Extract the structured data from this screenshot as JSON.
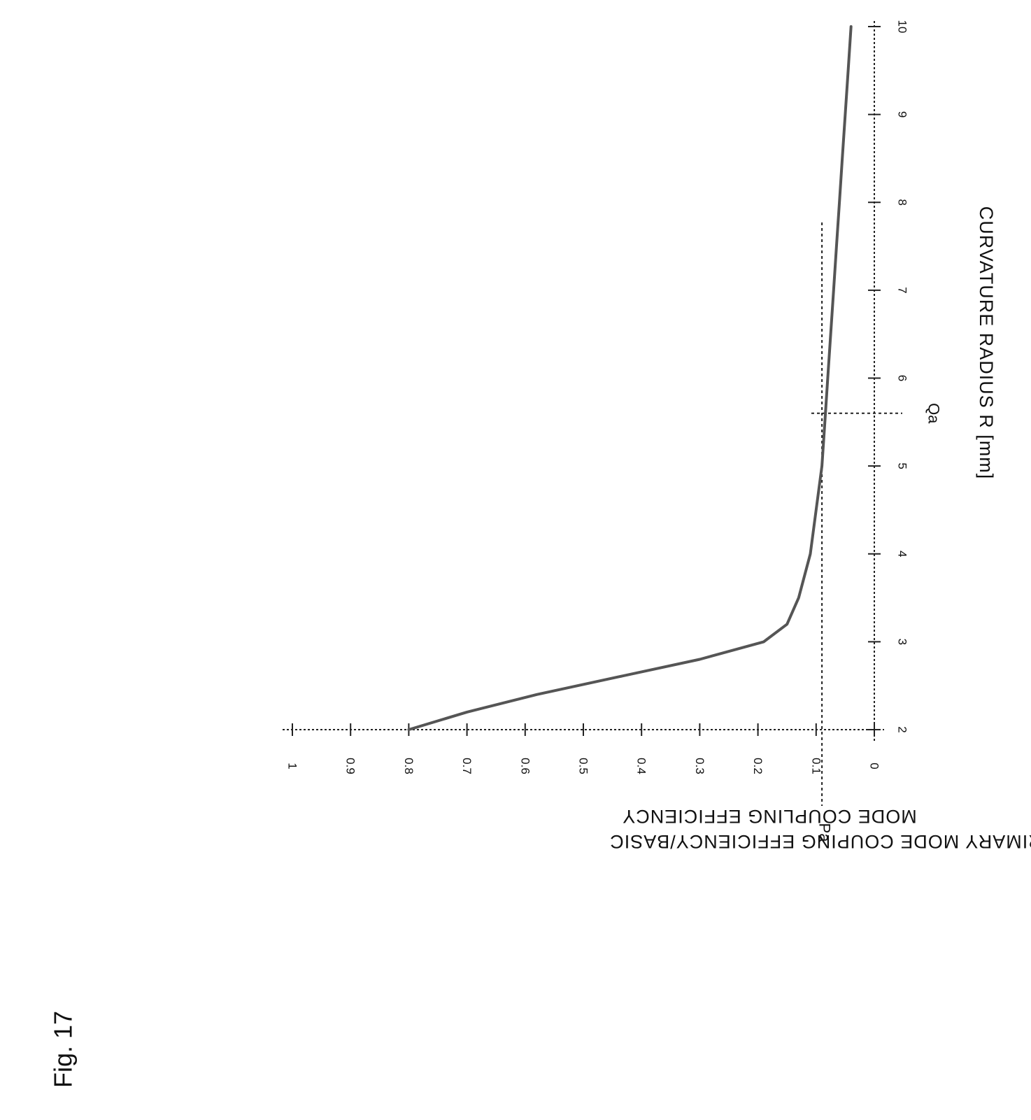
{
  "figure": {
    "label": "Fig. 17"
  },
  "chart_data": {
    "type": "line",
    "xlabel": "CURVATURE RADIUS R [mm]",
    "ylabel": "PRIMARY MODE COUPING EFFICIENCY/BASIC MODE COUPLING EFFICIENCY",
    "xlim": [
      2,
      10
    ],
    "ylim": [
      0,
      1
    ],
    "x_ticks": [
      "2",
      "3",
      "4",
      "5",
      "6",
      "7",
      "8",
      "9",
      "10"
    ],
    "y_ticks": [
      "0",
      "0.1",
      "0.2",
      "0.3",
      "0.4",
      "0.5",
      "0.6",
      "0.7",
      "0.8",
      "0.9",
      "1"
    ],
    "grid": "dotted gridlines at x = 2 and y = 0",
    "orientation": "rotated 90° clockwise",
    "series": [
      {
        "x": [
          2.0,
          2.2,
          2.4,
          2.6,
          2.8,
          3.0,
          3.2,
          3.5,
          4.0,
          4.5,
          5.0,
          5.5,
          6.0,
          6.5,
          7.0,
          7.5,
          8.0,
          8.5,
          9.0,
          9.5,
          10.0
        ],
        "values": [
          0.8,
          0.7,
          0.58,
          0.44,
          0.3,
          0.19,
          0.15,
          0.13,
          0.11,
          0.1,
          0.09,
          0.085,
          0.08,
          0.075,
          0.07,
          0.065,
          0.06,
          0.055,
          0.05,
          0.045,
          0.04
        ]
      }
    ],
    "reference_lines": [
      {
        "label": "Pa",
        "axis": "y",
        "value": 0.09
      },
      {
        "label": "Qa",
        "axis": "x",
        "value": 5.6
      }
    ]
  }
}
